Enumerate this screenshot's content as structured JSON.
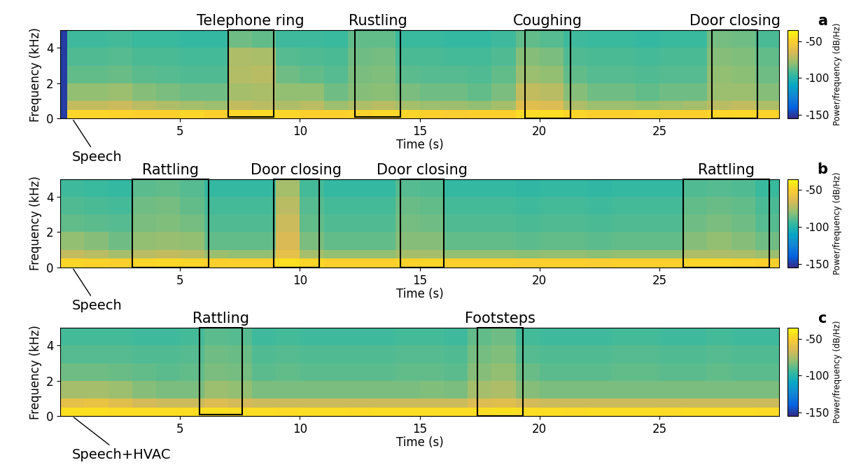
{
  "chart_data": [
    {
      "type": "heatmap",
      "panel_label": "a",
      "xlabel": "Time (s)",
      "ylabel": "Frequency (kHz)",
      "xlim": [
        0,
        30
      ],
      "xticks": [
        5,
        10,
        15,
        20,
        25
      ],
      "ylim": [
        0,
        5
      ],
      "yticks": [
        0,
        2,
        4
      ],
      "time_edges": [
        0,
        0.3,
        1,
        2,
        3,
        4,
        5,
        6,
        7,
        8,
        9,
        10,
        11,
        12,
        13,
        14,
        15,
        16,
        17,
        18,
        19,
        20,
        21,
        22,
        23,
        24,
        25,
        26,
        27,
        28,
        29,
        30
      ],
      "frequency_edges": [
        0,
        0.5,
        1,
        2,
        3,
        4,
        5
      ],
      "cells": [
        [
          -150,
          -48,
          -48,
          -49,
          -50,
          -50,
          -48,
          -50,
          -47,
          -46,
          -48,
          -50,
          -50,
          -49,
          -47,
          -48,
          -50,
          -51,
          -50,
          -50,
          -46,
          -45,
          -48,
          -50,
          -50,
          -49,
          -50,
          -50,
          -48,
          -47,
          -49
        ],
        [
          -150,
          -70,
          -70,
          -68,
          -72,
          -74,
          -76,
          -78,
          -70,
          -72,
          -74,
          -72,
          -78,
          -74,
          -72,
          -76,
          -78,
          -78,
          -80,
          -76,
          -62,
          -64,
          -74,
          -78,
          -78,
          -80,
          -78,
          -76,
          -72,
          -70,
          -74
        ],
        [
          -150,
          -80,
          -80,
          -78,
          -82,
          -84,
          -86,
          -86,
          -76,
          -75,
          -80,
          -80,
          -86,
          -82,
          -81,
          -84,
          -86,
          -86,
          -88,
          -84,
          -70,
          -72,
          -82,
          -86,
          -86,
          -88,
          -86,
          -86,
          -78,
          -78,
          -82
        ],
        [
          -150,
          -88,
          -88,
          -87,
          -89,
          -90,
          -91,
          -91,
          -73,
          -72,
          -86,
          -88,
          -90,
          -84,
          -83,
          -89,
          -90,
          -90,
          -91,
          -88,
          -78,
          -80,
          -88,
          -90,
          -90,
          -91,
          -90,
          -90,
          -80,
          -81,
          -86
        ],
        [
          -150,
          -91,
          -91,
          -90,
          -92,
          -92,
          -93,
          -93,
          -74,
          -75,
          -90,
          -91,
          -92,
          -86,
          -85,
          -92,
          -92,
          -93,
          -93,
          -91,
          -82,
          -84,
          -91,
          -92,
          -92,
          -93,
          -92,
          -92,
          -82,
          -83,
          -88
        ],
        [
          -150,
          -94,
          -94,
          -93,
          -95,
          -95,
          -96,
          -96,
          -86,
          -88,
          -94,
          -94,
          -95,
          -88,
          -88,
          -95,
          -95,
          -96,
          -96,
          -94,
          -88,
          -90,
          -94,
          -95,
          -95,
          -96,
          -95,
          -95,
          -85,
          -86,
          -92
        ]
      ],
      "colorbar": {
        "label": "Power/frequency (dB/Hz)",
        "range": [
          -155,
          -35
        ],
        "ticks": [
          -50,
          -100,
          -150
        ]
      },
      "events": [
        {
          "label": "Telephone ring",
          "start": 7.0,
          "end": 8.9,
          "low": 0.1,
          "high": 5
        },
        {
          "label": "Rustling",
          "start": 12.3,
          "end": 14.2,
          "low": 0.1,
          "high": 5
        },
        {
          "label": "Coughing",
          "start": 19.4,
          "end": 21.3,
          "low": 0,
          "high": 5
        },
        {
          "label": "Door closing",
          "start": 27.2,
          "end": 29.1,
          "low": 0,
          "high": 5
        }
      ],
      "annotations": [
        {
          "text": "Speech",
          "x": 0.5
        }
      ]
    },
    {
      "type": "heatmap",
      "panel_label": "b",
      "xlabel": "Time (s)",
      "ylabel": "Frequency (kHz)",
      "xlim": [
        0,
        30
      ],
      "xticks": [
        5,
        10,
        15,
        20,
        25
      ],
      "ylim": [
        0,
        5
      ],
      "yticks": [
        0,
        2,
        4
      ],
      "time_edges": [
        0,
        1,
        2,
        3,
        4,
        5,
        6,
        7,
        8,
        9,
        10,
        11,
        12,
        13,
        14,
        15,
        16,
        17,
        18,
        19,
        20,
        21,
        22,
        23,
        24,
        25,
        26,
        27,
        28,
        29,
        30
      ],
      "frequency_edges": [
        0,
        0.5,
        1,
        2,
        3,
        4,
        5
      ],
      "cells": [
        [
          -48,
          -49,
          -50,
          -48,
          -47,
          -48,
          -50,
          -50,
          -50,
          -44,
          -48,
          -50,
          -50,
          -50,
          -49,
          -48,
          -50,
          -50,
          -50,
          -51,
          -50,
          -50,
          -51,
          -50,
          -50,
          -50,
          -48,
          -48,
          -49,
          -50
        ],
        [
          -70,
          -72,
          -76,
          -72,
          -70,
          -72,
          -78,
          -80,
          -80,
          -60,
          -76,
          -80,
          -80,
          -80,
          -76,
          -76,
          -80,
          -80,
          -80,
          -81,
          -80,
          -80,
          -81,
          -80,
          -80,
          -80,
          -74,
          -74,
          -75,
          -78
        ],
        [
          -80,
          -82,
          -86,
          -80,
          -79,
          -80,
          -88,
          -88,
          -88,
          -65,
          -84,
          -88,
          -88,
          -88,
          -82,
          -82,
          -88,
          -88,
          -88,
          -89,
          -88,
          -88,
          -89,
          -88,
          -88,
          -88,
          -82,
          -80,
          -82,
          -86
        ],
        [
          -88,
          -89,
          -90,
          -84,
          -83,
          -85,
          -91,
          -91,
          -91,
          -68,
          -88,
          -91,
          -91,
          -91,
          -85,
          -86,
          -91,
          -91,
          -91,
          -92,
          -91,
          -91,
          -92,
          -91,
          -91,
          -91,
          -86,
          -84,
          -86,
          -90
        ],
        [
          -91,
          -92,
          -93,
          -86,
          -85,
          -88,
          -93,
          -93,
          -93,
          -72,
          -90,
          -93,
          -93,
          -93,
          -87,
          -88,
          -93,
          -93,
          -93,
          -94,
          -93,
          -93,
          -94,
          -93,
          -93,
          -93,
          -88,
          -87,
          -88,
          -92
        ],
        [
          -94,
          -95,
          -96,
          -89,
          -88,
          -90,
          -96,
          -96,
          -96,
          -76,
          -93,
          -96,
          -96,
          -96,
          -90,
          -91,
          -96,
          -96,
          -96,
          -97,
          -96,
          -96,
          -97,
          -96,
          -96,
          -96,
          -91,
          -90,
          -91,
          -95
        ]
      ],
      "colorbar": {
        "label": "Power/frequency (dB/Hz)",
        "range": [
          -155,
          -35
        ],
        "ticks": [
          -50,
          -100,
          -150
        ]
      },
      "events": [
        {
          "label": "Rattling",
          "start": 3.0,
          "end": 6.2,
          "low": 0,
          "high": 5
        },
        {
          "label": "Door closing",
          "start": 8.9,
          "end": 10.8,
          "low": 0,
          "high": 5
        },
        {
          "label": "Door closing",
          "start": 14.2,
          "end": 16.0,
          "low": 0,
          "high": 5
        },
        {
          "label": "Rattling",
          "start": 26.0,
          "end": 29.6,
          "low": 0,
          "high": 5
        }
      ],
      "annotations": [
        {
          "text": "Speech",
          "x": 0.5
        }
      ]
    },
    {
      "type": "heatmap",
      "panel_label": "c",
      "xlabel": "Time (s)",
      "ylabel": "Frequency (kHz)",
      "xlim": [
        0,
        30
      ],
      "xticks": [
        5,
        10,
        15,
        20,
        25
      ],
      "ylim": [
        0,
        5
      ],
      "yticks": [
        0,
        2,
        4
      ],
      "time_edges": [
        0,
        1,
        2,
        3,
        4,
        5,
        6,
        7,
        8,
        9,
        10,
        11,
        12,
        13,
        14,
        15,
        16,
        17,
        18,
        19,
        20,
        21,
        22,
        23,
        24,
        25,
        26,
        27,
        28,
        29,
        30
      ],
      "frequency_edges": [
        0,
        0.5,
        1,
        2,
        3,
        4,
        5
      ],
      "cells": [
        [
          -44,
          -44,
          -45,
          -45,
          -45,
          -45,
          -44,
          -45,
          -45,
          -46,
          -45,
          -45,
          -46,
          -45,
          -45,
          -45,
          -45,
          -45,
          -44,
          -45,
          -45,
          -46,
          -45,
          -45,
          -45,
          -46,
          -45,
          -45,
          -45,
          -46
        ],
        [
          -60,
          -58,
          -62,
          -66,
          -68,
          -68,
          -64,
          -66,
          -68,
          -68,
          -68,
          -68,
          -68,
          -68,
          -68,
          -68,
          -68,
          -64,
          -62,
          -66,
          -68,
          -68,
          -68,
          -68,
          -68,
          -68,
          -68,
          -68,
          -68,
          -68
        ],
        [
          -76,
          -76,
          -78,
          -82,
          -84,
          -84,
          -78,
          -80,
          -84,
          -84,
          -84,
          -84,
          -84,
          -84,
          -84,
          -83,
          -84,
          -76,
          -74,
          -82,
          -84,
          -84,
          -84,
          -84,
          -84,
          -84,
          -84,
          -84,
          -84,
          -84
        ],
        [
          -86,
          -86,
          -87,
          -88,
          -89,
          -88,
          -84,
          -85,
          -89,
          -88,
          -89,
          -89,
          -89,
          -89,
          -88,
          -88,
          -89,
          -82,
          -80,
          -87,
          -89,
          -89,
          -89,
          -88,
          -88,
          -89,
          -89,
          -88,
          -89,
          -89
        ],
        [
          -90,
          -90,
          -90,
          -91,
          -91,
          -90,
          -86,
          -87,
          -91,
          -90,
          -91,
          -91,
          -91,
          -91,
          -90,
          -90,
          -91,
          -85,
          -83,
          -90,
          -91,
          -91,
          -91,
          -90,
          -90,
          -91,
          -91,
          -90,
          -91,
          -91
        ],
        [
          -93,
          -93,
          -93,
          -94,
          -94,
          -93,
          -89,
          -90,
          -94,
          -93,
          -94,
          -94,
          -94,
          -94,
          -93,
          -93,
          -94,
          -88,
          -86,
          -93,
          -94,
          -94,
          -94,
          -93,
          -93,
          -94,
          -94,
          -93,
          -94,
          -94
        ]
      ],
      "colorbar": {
        "label": "Power/frequency (dB/Hz)",
        "range": [
          -155,
          -35
        ],
        "ticks": [
          -50,
          -100,
          -150
        ]
      },
      "events": [
        {
          "label": "Rattling",
          "start": 5.8,
          "end": 7.6,
          "low": 0.1,
          "high": 5
        },
        {
          "label": "Footsteps",
          "start": 17.4,
          "end": 19.3,
          "low": 0,
          "high": 5
        }
      ],
      "annotations": [
        {
          "text": "Speech+HVAC",
          "x": 0.5
        }
      ]
    }
  ]
}
